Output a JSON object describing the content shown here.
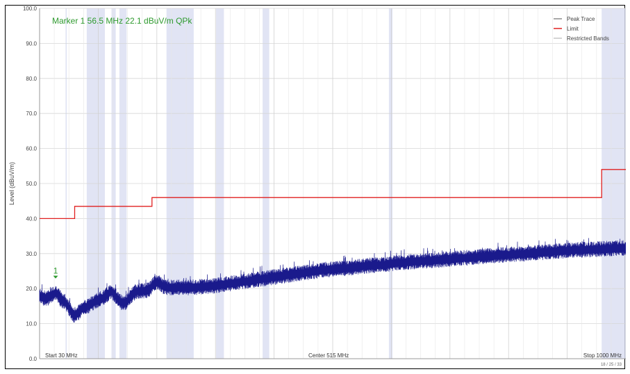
{
  "chart_data": {
    "type": "line",
    "title": "",
    "xlabel": "",
    "ylabel": "Level (dBuV/m)",
    "xlim": [
      30,
      1000
    ],
    "ylim": [
      0,
      100
    ],
    "y_ticks": [
      "100.0",
      "90.0",
      "80.0",
      "70.0",
      "60.0",
      "50.0",
      "40.0",
      "30.0",
      "20.0",
      "10.0",
      "0.0"
    ],
    "grid": true,
    "legend_position": "top-right",
    "legend": [
      {
        "name": "Peak Trace",
        "color": "#555555"
      },
      {
        "name": "Limit",
        "color": "#e02020"
      },
      {
        "name": "Restricted Bands",
        "color": "#a8a8a8"
      }
    ],
    "series": [
      {
        "name": "Peak Trace",
        "color": "#1a1a8c",
        "x": [
          30,
          37,
          44,
          51,
          58,
          65,
          72,
          79,
          86,
          93,
          100,
          107,
          114,
          121,
          128,
          135,
          142,
          149,
          156,
          163,
          170,
          177,
          184,
          191,
          198,
          205,
          212,
          219,
          226,
          233,
          240,
          250,
          260,
          280,
          300,
          320,
          340,
          360,
          380,
          400,
          420,
          440,
          460,
          480,
          500,
          520,
          540,
          560,
          580,
          600,
          620,
          640,
          660,
          680,
          700,
          720,
          740,
          760,
          780,
          800,
          820,
          840,
          860,
          880,
          900,
          920,
          940,
          960,
          980,
          1000
        ],
        "y": [
          18,
          17.5,
          17.5,
          18.5,
          19,
          17,
          16.5,
          14.5,
          12.5,
          13,
          14.5,
          15,
          15.5,
          16.5,
          17,
          17.5,
          18.5,
          19.5,
          18,
          16.5,
          16,
          17,
          18.5,
          19.5,
          19.5,
          19.5,
          20,
          21.5,
          22,
          21,
          20.5,
          20.5,
          20.5,
          20.5,
          20.7,
          21,
          21.5,
          22,
          22.5,
          23,
          23.5,
          24,
          24.5,
          25,
          25.5,
          25.8,
          26,
          26.5,
          26.8,
          27,
          27.5,
          27.8,
          28,
          28.2,
          28.5,
          28.8,
          29,
          29.3,
          29.5,
          29.8,
          30,
          30.2,
          30.5,
          30.8,
          31,
          31.2,
          31.3,
          31.5,
          31.6,
          31.8
        ]
      },
      {
        "name": "Limit",
        "color": "#e02020",
        "x": [
          30,
          88,
          88,
          216,
          216,
          960,
          960,
          1000
        ],
        "y": [
          40,
          40,
          43.5,
          43.5,
          46,
          46,
          54,
          54
        ]
      }
    ],
    "restricted_bands": [
      [
        73,
        75
      ],
      [
        108,
        138
      ],
      [
        149,
        156
      ],
      [
        162,
        174
      ],
      [
        240,
        285
      ],
      [
        322,
        335
      ],
      [
        399,
        410
      ],
      [
        608,
        614
      ],
      [
        960,
        1000
      ]
    ],
    "marker": {
      "label": "1",
      "x": 56.5,
      "y": 22.1
    },
    "annotations": {
      "marker_readout": "Marker 1 56.5 MHz 22.1 dBuV/m QPk",
      "start_label": "Start 30 MHz",
      "center_label": "Center 515 MHz",
      "stop_label": "Stop 1000 MHz",
      "timestamp": "18 / 25 / 33"
    }
  }
}
